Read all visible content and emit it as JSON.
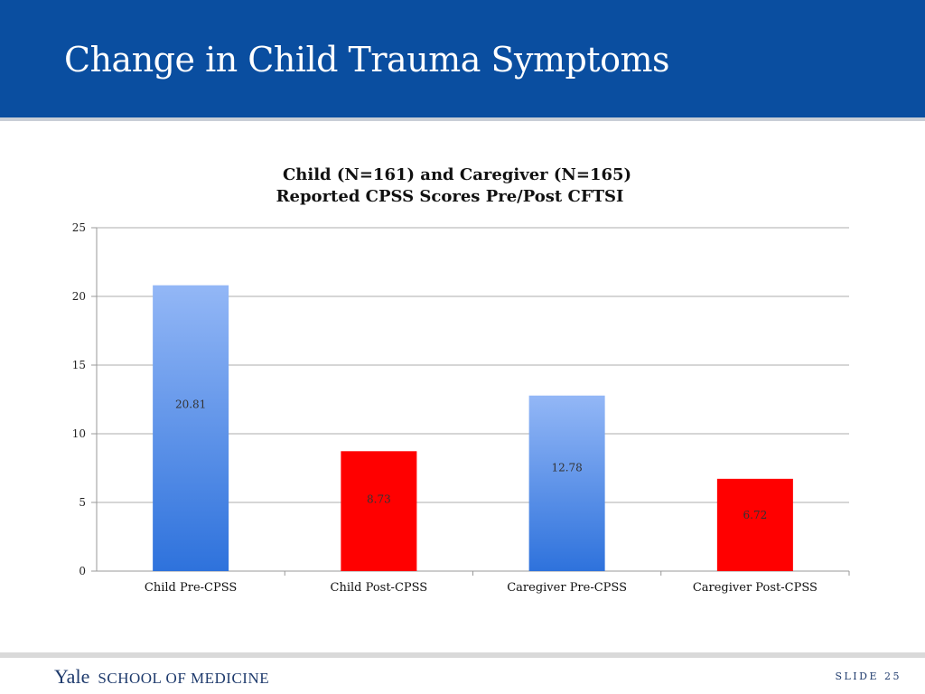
{
  "slide": {
    "title": "Change in Child Trauma Symptoms",
    "header_color": "#0a4ea0"
  },
  "chart_data": {
    "type": "bar",
    "title_lines": [
      "Child (N=161) and Caregiver (N=165)",
      "Reported CPSS Scores Pre/Post CFTSI"
    ],
    "categories": [
      "Child Pre-CPSS",
      "Child Post-CPSS",
      "Caregiver Pre-CPSS",
      "Caregiver Post-CPSS"
    ],
    "values": [
      20.81,
      8.73,
      12.78,
      6.72
    ],
    "value_labels": [
      "20.81",
      "8.73",
      "12.78",
      "6.72"
    ],
    "bar_styles": [
      "blue-gradient",
      "red",
      "blue-gradient",
      "red"
    ],
    "colors": {
      "blue_top": "#93b7f6",
      "blue_bottom": "#2e72dc",
      "red": "#ff0000",
      "grid": "#bdbdbd"
    },
    "ylim": [
      0,
      25
    ],
    "yticks": [
      0,
      5,
      10,
      15,
      20,
      25
    ],
    "xlabel": "",
    "ylabel": "",
    "grid": true,
    "legend": "none"
  },
  "footer": {
    "brand_yale": "Yale",
    "brand_school": "SCHOOL OF MEDICINE",
    "slide_label": "SLIDE 25"
  }
}
